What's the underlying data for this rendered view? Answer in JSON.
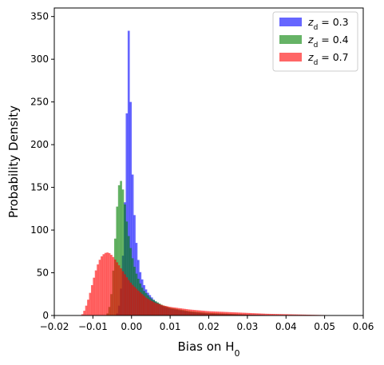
{
  "chart_data": {
    "type": "histogram",
    "title": "",
    "xlabel": "Bias on H",
    "xlabel_subscript": "0",
    "ylabel": "Probability Density",
    "xlim": [
      -0.02,
      0.06
    ],
    "ylim": [
      0,
      360
    ],
    "x_ticks": [
      -0.02,
      -0.01,
      0.0,
      0.01,
      0.02,
      0.03,
      0.04,
      0.05,
      0.06
    ],
    "x_tick_labels": [
      "−0.02",
      "−0.01",
      "0.00",
      "0.01",
      "0.02",
      "0.03",
      "0.04",
      "0.05",
      "0.06"
    ],
    "y_ticks": [
      0,
      50,
      100,
      150,
      200,
      250,
      300,
      350
    ],
    "y_tick_labels": [
      "0",
      "50",
      "100",
      "150",
      "200",
      "250",
      "300",
      "350"
    ],
    "grid": false,
    "legend_position": "top-right",
    "series": [
      {
        "name": "z_d = 0.3",
        "legend_var": "z",
        "legend_sub": "d",
        "legend_rest": " = 0.3",
        "color": "#0000ff",
        "opacity": 0.6,
        "points": [
          [
            -0.004,
            0
          ],
          [
            -0.0035,
            5
          ],
          [
            -0.003,
            18
          ],
          [
            -0.0025,
            45
          ],
          [
            -0.002,
            95
          ],
          [
            -0.0015,
            170
          ],
          [
            -0.0012,
            250
          ],
          [
            -0.001,
            320
          ],
          [
            -0.0008,
            340
          ],
          [
            -0.0005,
            300
          ],
          [
            -0.0002,
            240
          ],
          [
            0.0,
            190
          ],
          [
            0.0005,
            140
          ],
          [
            0.001,
            95
          ],
          [
            0.002,
            55
          ],
          [
            0.003,
            38
          ],
          [
            0.004,
            28
          ],
          [
            0.006,
            17
          ],
          [
            0.008,
            11
          ],
          [
            0.01,
            8
          ],
          [
            0.015,
            4
          ],
          [
            0.02,
            2
          ],
          [
            0.03,
            1
          ],
          [
            0.04,
            0
          ]
        ]
      },
      {
        "name": "z_d = 0.4",
        "legend_var": "z",
        "legend_sub": "d",
        "legend_rest": " = 0.4",
        "color": "#008000",
        "opacity": 0.6,
        "points": [
          [
            -0.0065,
            0
          ],
          [
            -0.006,
            5
          ],
          [
            -0.0055,
            15
          ],
          [
            -0.005,
            35
          ],
          [
            -0.0045,
            70
          ],
          [
            -0.004,
            110
          ],
          [
            -0.0035,
            145
          ],
          [
            -0.003,
            160
          ],
          [
            -0.0025,
            155
          ],
          [
            -0.002,
            140
          ],
          [
            -0.0015,
            120
          ],
          [
            -0.001,
            100
          ],
          [
            0.0,
            72
          ],
          [
            0.001,
            52
          ],
          [
            0.002,
            40
          ],
          [
            0.003,
            30
          ],
          [
            0.005,
            20
          ],
          [
            0.008,
            12
          ],
          [
            0.01,
            9
          ],
          [
            0.015,
            5
          ],
          [
            0.02,
            3
          ],
          [
            0.03,
            1
          ],
          [
            0.04,
            0
          ]
        ]
      },
      {
        "name": "z_d = 0.7",
        "legend_var": "z",
        "legend_sub": "d",
        "legend_rest": " = 0.7",
        "color": "#ff0000",
        "opacity": 0.6,
        "points": [
          [
            -0.013,
            0
          ],
          [
            -0.0125,
            3
          ],
          [
            -0.012,
            8
          ],
          [
            -0.011,
            22
          ],
          [
            -0.01,
            40
          ],
          [
            -0.009,
            57
          ],
          [
            -0.008,
            68
          ],
          [
            -0.007,
            73
          ],
          [
            -0.006,
            74
          ],
          [
            -0.005,
            70
          ],
          [
            -0.004,
            64
          ],
          [
            -0.003,
            57
          ],
          [
            -0.002,
            50
          ],
          [
            -0.001,
            43
          ],
          [
            0.0,
            37
          ],
          [
            0.002,
            28
          ],
          [
            0.004,
            20
          ],
          [
            0.006,
            15
          ],
          [
            0.008,
            12
          ],
          [
            0.01,
            10
          ],
          [
            0.015,
            7
          ],
          [
            0.02,
            5
          ],
          [
            0.025,
            4
          ],
          [
            0.03,
            3
          ],
          [
            0.035,
            2
          ],
          [
            0.04,
            1.5
          ],
          [
            0.045,
            1
          ],
          [
            0.05,
            0.5
          ],
          [
            0.055,
            0.2
          ],
          [
            0.06,
            0
          ]
        ]
      }
    ]
  }
}
